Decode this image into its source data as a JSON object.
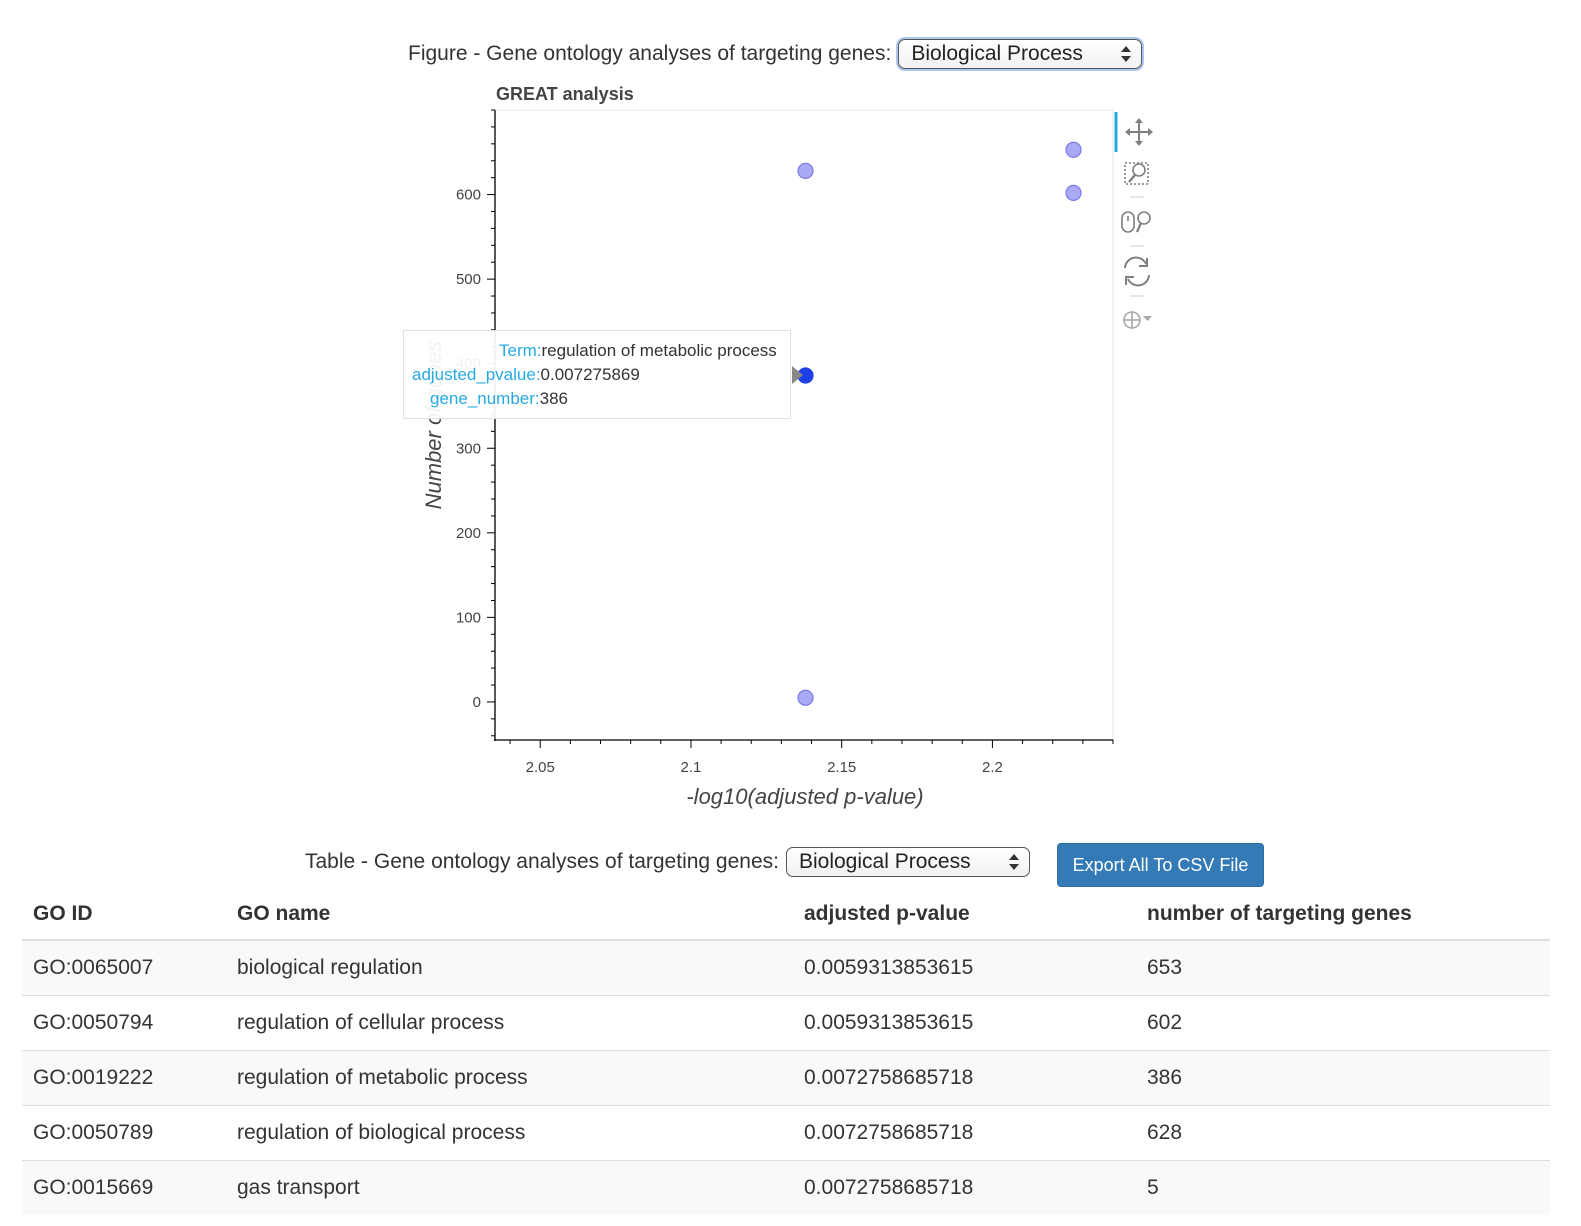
{
  "figure": {
    "heading": "Figure - Gene ontology analyses of targeting genes:",
    "ontology_select": "Biological Process"
  },
  "chart_data": {
    "type": "scatter",
    "title": "GREAT analysis",
    "xlabel": "-log10(adjusted p-value)",
    "ylabel": "Number of genes",
    "xlim": [
      2.035,
      2.24
    ],
    "ylim": [
      -45,
      700
    ],
    "x_ticks": [
      2.05,
      2.1,
      2.15,
      2.2
    ],
    "x_tick_labels": [
      "2.05",
      "2.1",
      "2.15",
      "2.2"
    ],
    "y_ticks": [
      0,
      100,
      200,
      300,
      400,
      500,
      600
    ],
    "y_tick_labels": [
      "0",
      "100",
      "200",
      "300",
      "400",
      "500",
      "600"
    ],
    "points": [
      {
        "x": 2.2269,
        "y": 653,
        "term": "biological regulation"
      },
      {
        "x": 2.2269,
        "y": 602,
        "term": "regulation of cellular process"
      },
      {
        "x": 2.138,
        "y": 386,
        "term": "regulation of metabolic process",
        "hovered": true
      },
      {
        "x": 2.138,
        "y": 628,
        "term": "regulation of biological process"
      },
      {
        "x": 2.138,
        "y": 5,
        "term": "gas transport"
      }
    ],
    "point_color": "#a9a9f5",
    "point_stroke": "#7a7ae8",
    "hover_color": "#1f3fe6",
    "tools": [
      "pan-icon",
      "box-zoom-icon",
      "wheel-zoom-icon",
      "reset-icon",
      "hover-icon"
    ]
  },
  "tooltip": {
    "term_key": "Term:",
    "term_value": "regulation of metabolic process",
    "pvalue_key": "adjusted_pvalue:",
    "pvalue_value": "0.007275869",
    "genes_key": "gene_number:",
    "genes_value": "386"
  },
  "table_section": {
    "heading": "Table - Gene ontology analyses of targeting genes:",
    "ontology_select": "Biological Process",
    "export_label": "Export All To CSV File"
  },
  "table": {
    "headers": [
      "GO ID",
      "GO name",
      "adjusted p-value",
      "number of targeting genes"
    ],
    "rows": [
      [
        "GO:0065007",
        "biological regulation",
        "0.0059313853615",
        "653"
      ],
      [
        "GO:0050794",
        "regulation of cellular process",
        "0.0059313853615",
        "602"
      ],
      [
        "GO:0019222",
        "regulation of metabolic process",
        "0.0072758685718",
        "386"
      ],
      [
        "GO:0050789",
        "regulation of biological process",
        "0.0072758685718",
        "628"
      ],
      [
        "GO:0015669",
        "gas transport",
        "0.0072758685718",
        "5"
      ]
    ]
  }
}
